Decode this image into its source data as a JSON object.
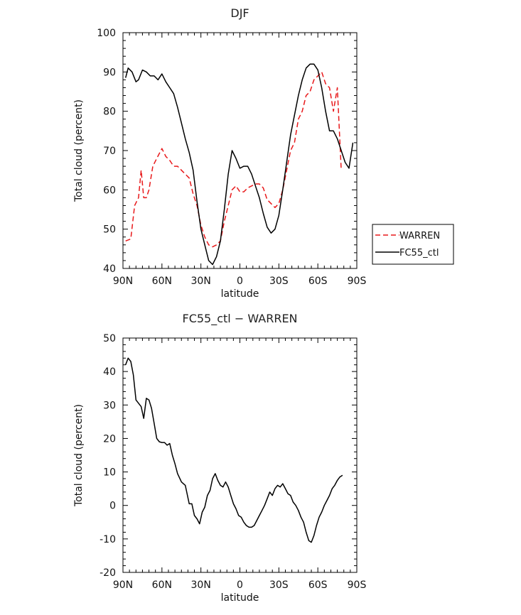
{
  "chart_data": [
    {
      "type": "line",
      "title": "DJF",
      "xlabel": "latitude",
      "ylabel": "Total cloud (percent)",
      "xlim": [
        90,
        -90
      ],
      "ylim": [
        40,
        100
      ],
      "x_tick_values": [
        90,
        60,
        30,
        0,
        -30,
        -60,
        -90
      ],
      "x_tick_labels": [
        "90N",
        "60N",
        "30N",
        "0",
        "30S",
        "60S",
        "90S"
      ],
      "y_ticks": [
        40,
        50,
        60,
        70,
        80,
        90,
        100
      ],
      "legend_position": "right",
      "series": [
        {
          "name": "WARREN",
          "color": "#e8191b",
          "dash": "dashed",
          "x": [
            88,
            84,
            81,
            78,
            76,
            74,
            72,
            70,
            67,
            64,
            60,
            57,
            54,
            51,
            48,
            45,
            42,
            39,
            36,
            33,
            30,
            27,
            24,
            21,
            18,
            15,
            12,
            9,
            6,
            3,
            0,
            -3,
            -6,
            -9,
            -12,
            -15,
            -18,
            -21,
            -24,
            -27,
            -30,
            -33,
            -36,
            -39,
            -42,
            -45,
            -48,
            -51,
            -54,
            -57,
            -60,
            -63,
            -66,
            -69,
            -72,
            -75,
            -78
          ],
          "y": [
            47,
            47.5,
            56,
            58,
            65,
            58,
            58,
            60,
            66,
            68,
            70.5,
            68.5,
            67.5,
            66,
            66,
            65,
            64,
            63,
            59,
            56,
            51,
            48,
            46,
            45.5,
            46,
            47,
            52,
            56,
            60,
            61,
            59.5,
            59.5,
            60.5,
            61,
            61.5,
            61.5,
            60.5,
            57.5,
            56.5,
            55.5,
            56.5,
            60,
            65,
            70,
            72,
            78,
            80,
            84,
            85,
            88,
            89,
            90,
            87,
            86,
            80,
            86,
            65
          ]
        },
        {
          "name": "FC55_ctl",
          "color": "#000000",
          "dash": "solid",
          "x": [
            88,
            86,
            83,
            80,
            78,
            75,
            72,
            69,
            66,
            63,
            60,
            57,
            54,
            51,
            48,
            45,
            42,
            39,
            36,
            33,
            30,
            27,
            24,
            21,
            18,
            15,
            12,
            9,
            6,
            3,
            0,
            -3,
            -6,
            -9,
            -12,
            -15,
            -18,
            -21,
            -24,
            -27,
            -30,
            -33,
            -36,
            -39,
            -42,
            -45,
            -48,
            -51,
            -54,
            -57,
            -60,
            -63,
            -66,
            -69,
            -72,
            -75,
            -78,
            -81,
            -84,
            -87
          ],
          "y": [
            88.5,
            91,
            90,
            87.5,
            88,
            90.5,
            90,
            89,
            89,
            88,
            89.5,
            87.5,
            86,
            84.5,
            81,
            77,
            73,
            69.5,
            65,
            57,
            50,
            46,
            42,
            41,
            43,
            47,
            55,
            64,
            70,
            68,
            65.5,
            66,
            66,
            64,
            61,
            58,
            54,
            50.5,
            49,
            50,
            53.5,
            60,
            67,
            74,
            79,
            84,
            88,
            91,
            92,
            92,
            90.5,
            86,
            80,
            75,
            75,
            73,
            70,
            67,
            65.5,
            72
          ]
        }
      ]
    },
    {
      "type": "line",
      "title": "FC55_ctl − WARREN",
      "xlabel": "latitude",
      "ylabel": "Total cloud (percent)",
      "xlim": [
        90,
        -90
      ],
      "ylim": [
        -20,
        50
      ],
      "x_tick_values": [
        90,
        60,
        30,
        0,
        -30,
        -60,
        -90
      ],
      "x_tick_labels": [
        "90N",
        "60N",
        "30N",
        "0",
        "30S",
        "60S",
        "90S"
      ],
      "y_ticks": [
        -20,
        -10,
        0,
        10,
        20,
        30,
        40,
        50
      ],
      "series": [
        {
          "color": "#000000",
          "x": [
            88,
            86,
            84,
            82,
            80,
            76,
            74,
            72,
            70,
            68,
            66,
            64,
            62,
            60,
            58,
            56,
            54,
            52,
            50,
            48,
            45,
            42,
            39,
            37,
            35,
            33,
            31,
            29,
            27,
            25,
            23,
            21,
            19,
            17,
            15,
            13,
            11,
            9,
            7,
            5,
            3,
            1,
            -1,
            -3,
            -5,
            -7,
            -9,
            -11,
            -13,
            -15,
            -17,
            -19,
            -21,
            -23,
            -25,
            -27,
            -29,
            -31,
            -33,
            -35,
            -37,
            -39,
            -41,
            -43,
            -45,
            -47,
            -49,
            -51,
            -53,
            -55,
            -57,
            -59,
            -61,
            -63,
            -65,
            -67,
            -69,
            -71,
            -73,
            -75,
            -77,
            -79
          ],
          "y": [
            42,
            44,
            43,
            39,
            31.5,
            29.5,
            26,
            32,
            31.5,
            29,
            24.5,
            20,
            19,
            18.8,
            18.8,
            18,
            18.5,
            15,
            12.5,
            9.5,
            7,
            6,
            0.5,
            0.5,
            -3,
            -4,
            -5.5,
            -2,
            -0.5,
            3,
            4.5,
            8,
            9.5,
            7.5,
            6,
            5.5,
            7,
            5.5,
            3,
            0.5,
            -1,
            -3,
            -3.5,
            -5,
            -6,
            -6.5,
            -6.5,
            -6,
            -4.5,
            -3,
            -1.5,
            0,
            2,
            4,
            3,
            5,
            6,
            5.5,
            6.5,
            5,
            3.5,
            3,
            1,
            0,
            -1.5,
            -3.5,
            -5,
            -8,
            -10.5,
            -11,
            -9,
            -6,
            -3.5,
            -2,
            0,
            1.5,
            3,
            5,
            6,
            7.5,
            8.5,
            9
          ]
        }
      ]
    }
  ]
}
